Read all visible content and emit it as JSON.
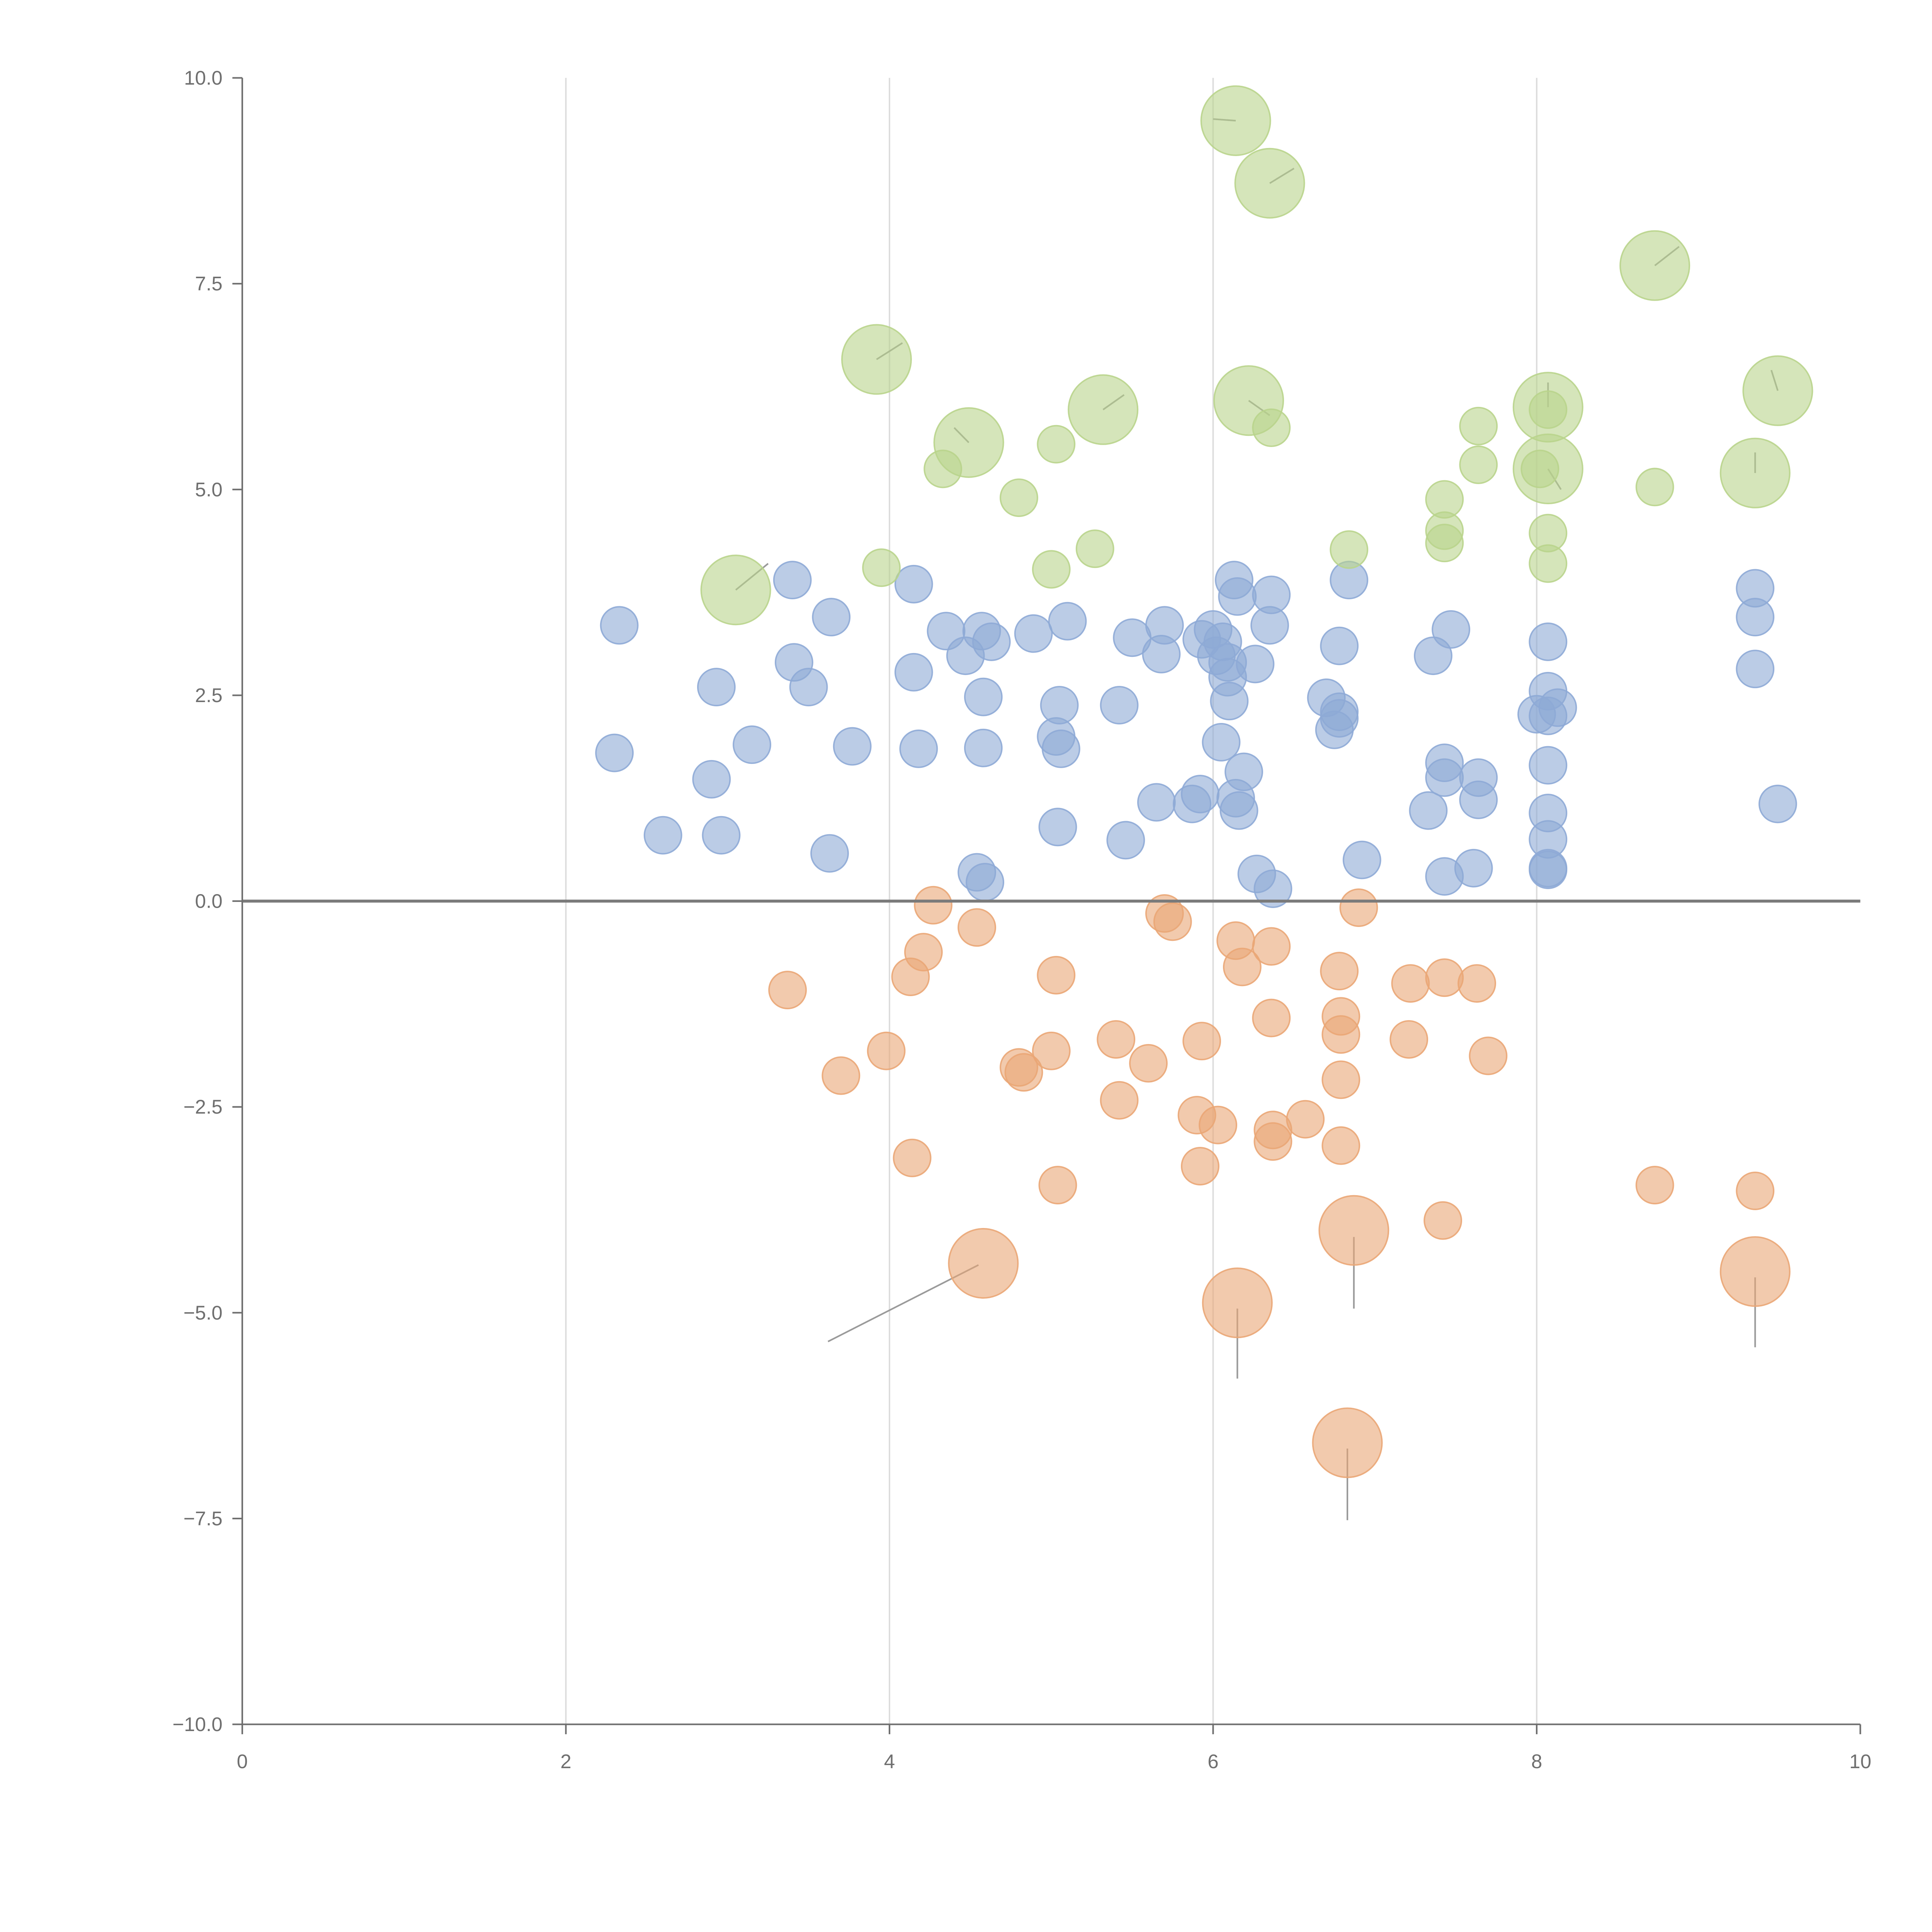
{
  "chart_data": {
    "type": "scatter",
    "title": "",
    "xlabel": "",
    "ylabel": "",
    "xlim": [
      0,
      10
    ],
    "ylim": [
      -10,
      10
    ],
    "x_ticks": [
      "0",
      "2",
      "4",
      "6",
      "8",
      "10"
    ],
    "y_ticks": [
      "10.0",
      "7.5",
      "5.0",
      "2.5",
      "0.0",
      "−2.5",
      "−5.0",
      "−7.5",
      "−10.0"
    ],
    "vertical_grid_at": [
      2,
      4,
      6,
      8
    ],
    "zero_line": true,
    "colors": {
      "low": "#8eaad6",
      "negative": "#eaa676",
      "high": "#b9d48c",
      "axis": "#6f6f6f",
      "grid": "#dcdcdc"
    },
    "series": [
      {
        "color_key": "low",
        "points": [
          [
            2.3,
            1.8,
            1
          ],
          [
            2.33,
            3.35,
            1
          ],
          [
            2.6,
            0.8,
            1
          ],
          [
            2.9,
            1.48,
            1
          ],
          [
            2.93,
            2.6,
            1
          ],
          [
            2.96,
            0.8,
            1
          ],
          [
            3.15,
            1.9,
            1
          ],
          [
            3.4,
            3.9,
            1
          ],
          [
            3.41,
            2.9,
            1
          ],
          [
            3.5,
            2.6,
            1
          ],
          [
            3.63,
            0.58,
            1
          ],
          [
            3.64,
            3.45,
            1
          ],
          [
            3.77,
            1.88,
            1
          ],
          [
            4.15,
            3.85,
            1
          ],
          [
            4.15,
            2.78,
            1
          ],
          [
            4.18,
            1.85,
            1
          ],
          [
            4.35,
            3.28,
            1
          ],
          [
            4.47,
            2.98,
            1
          ],
          [
            4.54,
            0.35,
            1
          ],
          [
            4.57,
            3.28,
            1
          ],
          [
            4.58,
            1.86,
            1
          ],
          [
            4.58,
            2.48,
            1
          ],
          [
            4.59,
            0.23,
            1
          ],
          [
            4.63,
            3.15,
            1
          ],
          [
            4.89,
            3.25,
            1
          ],
          [
            5.03,
            2.0,
            1
          ],
          [
            5.05,
            2.38,
            1
          ],
          [
            5.06,
            1.85,
            1
          ],
          [
            5.04,
            0.9,
            1
          ],
          [
            5.1,
            3.4,
            1
          ],
          [
            5.42,
            2.38,
            1
          ],
          [
            5.46,
            0.74,
            1
          ],
          [
            5.5,
            3.2,
            1
          ],
          [
            5.68,
            3.0,
            1
          ],
          [
            5.7,
            3.35,
            1
          ],
          [
            5.65,
            1.2,
            1
          ],
          [
            5.87,
            1.18,
            1
          ],
          [
            5.92,
            1.3,
            1
          ],
          [
            5.93,
            3.18,
            1
          ],
          [
            6.0,
            3.3,
            1
          ],
          [
            6.02,
            2.98,
            1
          ],
          [
            6.06,
            3.15,
            1
          ],
          [
            6.05,
            1.93,
            1
          ],
          [
            6.09,
            2.9,
            1
          ],
          [
            6.09,
            2.72,
            1
          ],
          [
            6.1,
            2.43,
            1
          ],
          [
            6.14,
            1.25,
            1
          ],
          [
            6.13,
            3.9,
            1
          ],
          [
            6.15,
            3.7,
            1
          ],
          [
            6.16,
            1.1,
            1
          ],
          [
            6.19,
            1.57,
            1
          ],
          [
            6.26,
            2.88,
            1
          ],
          [
            6.27,
            0.33,
            1
          ],
          [
            6.35,
            3.35,
            1
          ],
          [
            6.36,
            3.72,
            1
          ],
          [
            6.37,
            0.15,
            1
          ],
          [
            6.7,
            2.47,
            1
          ],
          [
            6.75,
            2.08,
            1
          ],
          [
            6.78,
            2.3,
            1
          ],
          [
            6.78,
            2.22,
            1
          ],
          [
            6.78,
            3.1,
            1
          ],
          [
            6.84,
            3.9,
            1
          ],
          [
            6.92,
            0.5,
            1
          ],
          [
            7.33,
            1.1,
            1
          ],
          [
            7.36,
            2.98,
            1
          ],
          [
            7.43,
            1.5,
            1
          ],
          [
            7.43,
            1.68,
            1
          ],
          [
            7.43,
            0.3,
            1
          ],
          [
            7.47,
            3.3,
            1
          ],
          [
            7.61,
            0.4,
            1
          ],
          [
            7.64,
            1.5,
            1
          ],
          [
            7.64,
            1.23,
            1
          ],
          [
            8.0,
            2.27,
            1
          ],
          [
            8.07,
            2.55,
            1
          ],
          [
            8.07,
            1.65,
            1
          ],
          [
            8.07,
            3.15,
            1
          ],
          [
            8.07,
            0.75,
            1
          ],
          [
            8.07,
            0.4,
            1
          ],
          [
            8.07,
            1.07,
            1
          ],
          [
            8.07,
            0.38,
            1
          ],
          [
            8.07,
            2.25,
            1
          ],
          [
            8.13,
            2.35,
            1
          ],
          [
            9.35,
            3.8,
            1
          ],
          [
            9.35,
            3.45,
            1
          ],
          [
            9.35,
            2.82,
            1
          ],
          [
            9.49,
            1.18,
            1
          ]
        ]
      },
      {
        "color_key": "negative",
        "points": [
          [
            3.37,
            -1.08,
            1
          ],
          [
            3.7,
            -2.12,
            1
          ],
          [
            3.98,
            -1.82,
            1
          ],
          [
            4.13,
            -0.92,
            1
          ],
          [
            4.14,
            -3.12,
            1
          ],
          [
            4.21,
            -0.62,
            1
          ],
          [
            4.27,
            -0.05,
            1
          ],
          [
            4.54,
            -0.32,
            1
          ],
          [
            4.58,
            -4.4,
            2
          ],
          [
            4.8,
            -2.02,
            1
          ],
          [
            4.83,
            -2.08,
            1
          ],
          [
            5.0,
            -1.82,
            1
          ],
          [
            5.03,
            -0.9,
            1
          ],
          [
            5.04,
            -3.45,
            1
          ],
          [
            5.4,
            -1.68,
            1
          ],
          [
            5.42,
            -2.42,
            1
          ],
          [
            5.6,
            -1.97,
            1
          ],
          [
            5.7,
            -0.15,
            1
          ],
          [
            5.75,
            -0.25,
            1
          ],
          [
            5.9,
            -2.6,
            1
          ],
          [
            5.92,
            -3.22,
            1
          ],
          [
            5.93,
            -1.7,
            1
          ],
          [
            6.03,
            -2.72,
            1
          ],
          [
            6.14,
            -0.48,
            1
          ],
          [
            6.15,
            -4.88,
            2
          ],
          [
            6.18,
            -0.8,
            1
          ],
          [
            6.36,
            -1.42,
            1
          ],
          [
            6.37,
            -2.78,
            1
          ],
          [
            6.37,
            -2.92,
            1
          ],
          [
            6.36,
            -0.55,
            1
          ],
          [
            6.57,
            -2.65,
            1
          ],
          [
            6.78,
            -0.85,
            1
          ],
          [
            6.79,
            -1.62,
            1
          ],
          [
            6.79,
            -1.4,
            1
          ],
          [
            6.79,
            -2.17,
            1
          ],
          [
            6.79,
            -2.97,
            1
          ],
          [
            6.83,
            -6.58,
            2
          ],
          [
            6.87,
            -4.0,
            2
          ],
          [
            6.9,
            -0.08,
            1
          ],
          [
            7.21,
            -1.68,
            1
          ],
          [
            7.22,
            -1.0,
            1
          ],
          [
            7.42,
            -3.88,
            1
          ],
          [
            7.43,
            -0.93,
            1
          ],
          [
            7.63,
            -1.0,
            1
          ],
          [
            7.7,
            -1.88,
            1
          ],
          [
            8.73,
            -3.45,
            1
          ],
          [
            9.35,
            -3.52,
            1
          ],
          [
            9.35,
            -4.5,
            2
          ]
        ]
      },
      {
        "color_key": "high",
        "points": [
          [
            3.05,
            3.78,
            2
          ],
          [
            3.92,
            6.58,
            2
          ],
          [
            3.95,
            4.05,
            1
          ],
          [
            4.33,
            5.25,
            1
          ],
          [
            4.49,
            5.57,
            2
          ],
          [
            4.8,
            4.9,
            1
          ],
          [
            5.0,
            4.03,
            1
          ],
          [
            5.03,
            5.55,
            1
          ],
          [
            5.27,
            4.28,
            1
          ],
          [
            5.32,
            5.97,
            2
          ],
          [
            6.14,
            9.48,
            2
          ],
          [
            6.22,
            6.08,
            2
          ],
          [
            6.35,
            8.72,
            2
          ],
          [
            6.36,
            5.75,
            1
          ],
          [
            6.84,
            4.27,
            1
          ],
          [
            7.43,
            4.88,
            1
          ],
          [
            7.43,
            4.5,
            1
          ],
          [
            7.43,
            4.35,
            1
          ],
          [
            7.64,
            5.77,
            1
          ],
          [
            7.64,
            5.3,
            1
          ],
          [
            8.02,
            5.25,
            1
          ],
          [
            8.07,
            6.0,
            2
          ],
          [
            8.07,
            5.97,
            1
          ],
          [
            8.07,
            5.25,
            2
          ],
          [
            8.07,
            4.47,
            1
          ],
          [
            8.07,
            4.1,
            1
          ],
          [
            8.73,
            7.72,
            2
          ],
          [
            8.73,
            5.03,
            1
          ],
          [
            9.35,
            5.2,
            2
          ],
          [
            9.49,
            6.2,
            2
          ]
        ]
      }
    ],
    "leader_lines": [
      [
        4.55,
        -4.42,
        3.62,
        -5.35
      ],
      [
        6.15,
        -4.95,
        6.15,
        -5.8
      ],
      [
        6.87,
        -4.08,
        6.87,
        -4.95
      ],
      [
        6.83,
        -6.65,
        6.83,
        -7.52
      ],
      [
        9.35,
        -4.57,
        9.35,
        -5.42
      ],
      [
        3.05,
        3.78,
        3.25,
        4.1
      ],
      [
        3.92,
        6.58,
        4.08,
        6.78
      ],
      [
        4.49,
        5.57,
        4.4,
        5.75
      ],
      [
        5.32,
        5.97,
        5.45,
        6.15
      ],
      [
        6.14,
        9.48,
        6.0,
        9.5
      ],
      [
        6.22,
        6.08,
        6.35,
        5.9
      ],
      [
        6.35,
        8.72,
        6.5,
        8.9
      ],
      [
        8.07,
        6.0,
        8.07,
        6.3
      ],
      [
        8.07,
        5.25,
        8.15,
        5.0
      ],
      [
        8.73,
        7.72,
        8.88,
        7.95
      ],
      [
        9.35,
        5.2,
        9.35,
        5.45
      ],
      [
        9.49,
        6.2,
        9.45,
        6.45
      ]
    ]
  }
}
